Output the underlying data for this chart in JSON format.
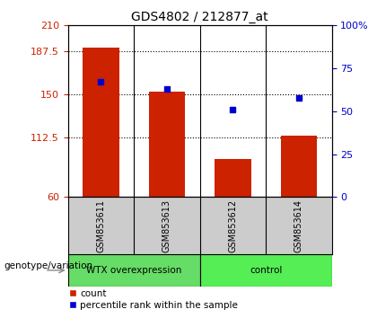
{
  "title": "GDS4802 / 212877_at",
  "samples": [
    "GSM853611",
    "GSM853613",
    "GSM853612",
    "GSM853614"
  ],
  "bar_values": [
    190.5,
    152.0,
    93.0,
    113.5
  ],
  "percentile_values": [
    67,
    63,
    51,
    58
  ],
  "bar_color": "#cc2200",
  "percentile_color": "#0000cc",
  "ylim_left": [
    60,
    210
  ],
  "yticks_left": [
    60,
    112.5,
    150,
    187.5,
    210
  ],
  "ytick_labels_left": [
    "60",
    "112.5",
    "150",
    "187.5",
    "210"
  ],
  "ylim_right": [
    0,
    100
  ],
  "yticks_right": [
    0,
    25,
    50,
    75,
    100
  ],
  "ytick_labels_right": [
    "0",
    "25",
    "50",
    "75",
    "100%"
  ],
  "groups": [
    {
      "label": "WTX overexpression",
      "color": "#66dd66",
      "start": 0,
      "end": 1
    },
    {
      "label": "control",
      "color": "#55ee55",
      "start": 2,
      "end": 3
    }
  ],
  "group_label": "genotype/variation",
  "legend_count_label": "count",
  "legend_percentile_label": "percentile rank within the sample",
  "bar_width": 0.55,
  "plot_bg": "#ffffff",
  "sample_box_bg": "#cccccc",
  "title_fontsize": 10,
  "tick_fontsize": 8,
  "label_fontsize": 8
}
